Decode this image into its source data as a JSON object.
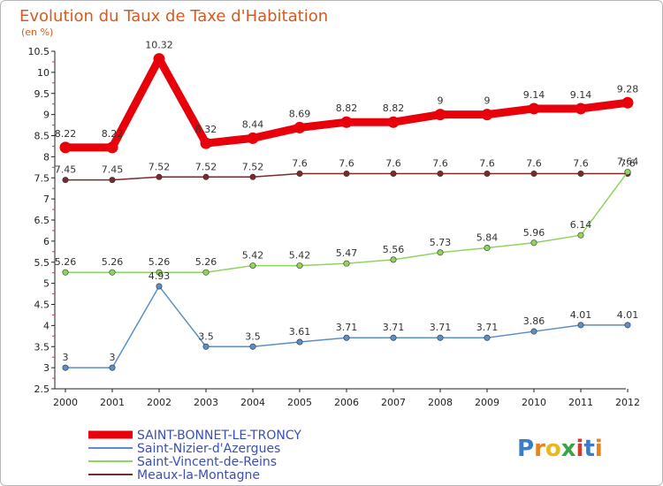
{
  "chart_data": {
    "type": "line",
    "title": "Evolution du Taux de Taxe d'Habitation",
    "subtitle": "(en %)",
    "categories": [
      "2000",
      "2001",
      "2002",
      "2003",
      "2004",
      "2005",
      "2006",
      "2007",
      "2008",
      "2009",
      "2010",
      "2011",
      "2012"
    ],
    "ylim": [
      2.5,
      10.5
    ],
    "yticks": [
      "2.5",
      "3",
      "3.5",
      "4",
      "4.5",
      "5",
      "5.5",
      "6",
      "6.5",
      "7",
      "7.5",
      "8",
      "8.5",
      "9",
      "9.5",
      "10",
      "10.5"
    ],
    "series": [
      {
        "name": "SAINT-BONNET-LE-TRONCY",
        "color": "#e8000b",
        "values": [
          8.22,
          8.22,
          10.32,
          8.32,
          8.44,
          8.69,
          8.82,
          8.82,
          9,
          9,
          9.14,
          9.14,
          9.28
        ],
        "labels": [
          "8.22",
          "8.22",
          "10.32",
          "8.32",
          "8.44",
          "8.69",
          "8.82",
          "8.82",
          "9",
          "9",
          "9.14",
          "9.14",
          "9.28"
        ]
      },
      {
        "name": "Saint-Nizier-d'Azergues",
        "color": "#5b8fc7",
        "values": [
          3,
          3,
          4.93,
          3.5,
          3.5,
          3.61,
          3.71,
          3.71,
          3.71,
          3.71,
          3.86,
          4.01,
          4.01
        ],
        "labels": [
          "3",
          "3",
          "4.93",
          "3.5",
          "3.5",
          "3.61",
          "3.71",
          "3.71",
          "3.71",
          "3.71",
          "3.86",
          "4.01",
          "4.01"
        ]
      },
      {
        "name": "Saint-Vincent-de-Reins",
        "color": "#8fd45e",
        "values": [
          5.26,
          5.26,
          5.26,
          5.26,
          5.42,
          5.42,
          5.47,
          5.56,
          5.73,
          5.84,
          5.96,
          6.14,
          7.64
        ],
        "labels": [
          "5.26",
          "5.26",
          "5.26",
          "5.26",
          "5.42",
          "5.42",
          "5.47",
          "5.56",
          "5.73",
          "5.84",
          "5.96",
          "6.14",
          "7.64"
        ]
      },
      {
        "name": "Meaux-la-Montagne",
        "color": "#7a2a2a",
        "values": [
          7.45,
          7.45,
          7.52,
          7.52,
          7.52,
          7.6,
          7.6,
          7.6,
          7.6,
          7.6,
          7.6,
          7.6,
          7.6
        ],
        "labels": [
          "7.45",
          "7.45",
          "7.52",
          "7.52",
          "7.52",
          "7.6",
          "7.6",
          "7.6",
          "7.6",
          "7.6",
          "7.6",
          "7.6",
          "7.6"
        ]
      }
    ],
    "grid": false,
    "legend": "bottom-left"
  },
  "brand": {
    "text": "Proxiti",
    "letters": [
      "P",
      "r",
      "o",
      "x",
      "i",
      "t",
      "i"
    ],
    "colors": [
      "#3a7ecb",
      "#e8821e",
      "#e8b81e",
      "#3aa34a",
      "#d43a2e",
      "#3a7ecb",
      "#e8821e"
    ]
  }
}
